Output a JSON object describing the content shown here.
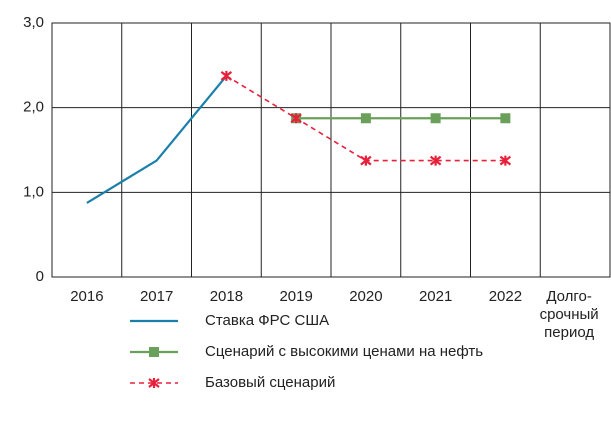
{
  "chart_data": {
    "type": "line",
    "categories": [
      "2016",
      "2017",
      "2018",
      "2019",
      "2020",
      "2021",
      "2022",
      [
        "Долго-",
        "срочный",
        "период"
      ]
    ],
    "series": [
      {
        "name": "Ставка ФРС США",
        "color": "#1a80aa",
        "marker": "none",
        "dash": false,
        "values": [
          0.875,
          1.375,
          2.375,
          null,
          null,
          null,
          null,
          null
        ]
      },
      {
        "name": "Сценарий с высокими ценами на нефть",
        "color": "#6aa05a",
        "marker": "square",
        "dash": false,
        "values": [
          null,
          null,
          null,
          1.875,
          1.875,
          1.875,
          1.875,
          null
        ]
      },
      {
        "name": "Базовый сценарий",
        "color": "#e8203a",
        "marker": "star",
        "dash": true,
        "values": [
          null,
          null,
          2.375,
          1.875,
          1.375,
          1.375,
          1.375,
          null
        ]
      }
    ],
    "ylim": [
      0,
      3
    ],
    "yticks": [
      0,
      {
        "value": 1,
        "label": "1,0"
      },
      {
        "value": 2,
        "label": "2,0"
      },
      {
        "value": 3,
        "label": "3,0"
      }
    ],
    "grid": true
  }
}
